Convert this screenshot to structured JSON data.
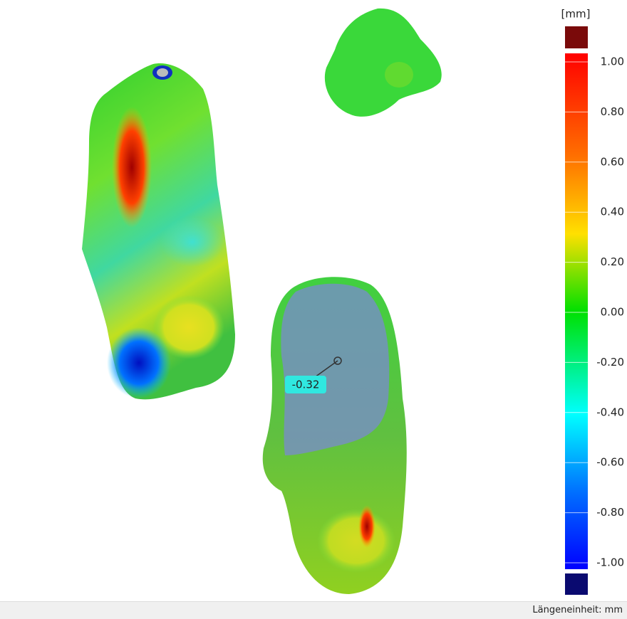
{
  "legend": {
    "unit": "[mm]",
    "ticks": [
      {
        "value": 1.0,
        "label": "1.00"
      },
      {
        "value": 0.8,
        "label": "0.80"
      },
      {
        "value": 0.6,
        "label": "0.60"
      },
      {
        "value": 0.4,
        "label": "0.40"
      },
      {
        "value": 0.2,
        "label": "0.20"
      },
      {
        "value": 0.0,
        "label": "0.00"
      },
      {
        "value": -0.2,
        "label": "-0.20"
      },
      {
        "value": -0.4,
        "label": "-0.40"
      },
      {
        "value": -0.6,
        "label": "-0.60"
      },
      {
        "value": -0.8,
        "label": "-0.80"
      },
      {
        "value": -1.0,
        "label": "-1.00"
      }
    ]
  },
  "annotation": {
    "value": -0.32,
    "label": "-0.32"
  },
  "status_bar": {
    "text": "Längeneinheit: mm"
  }
}
